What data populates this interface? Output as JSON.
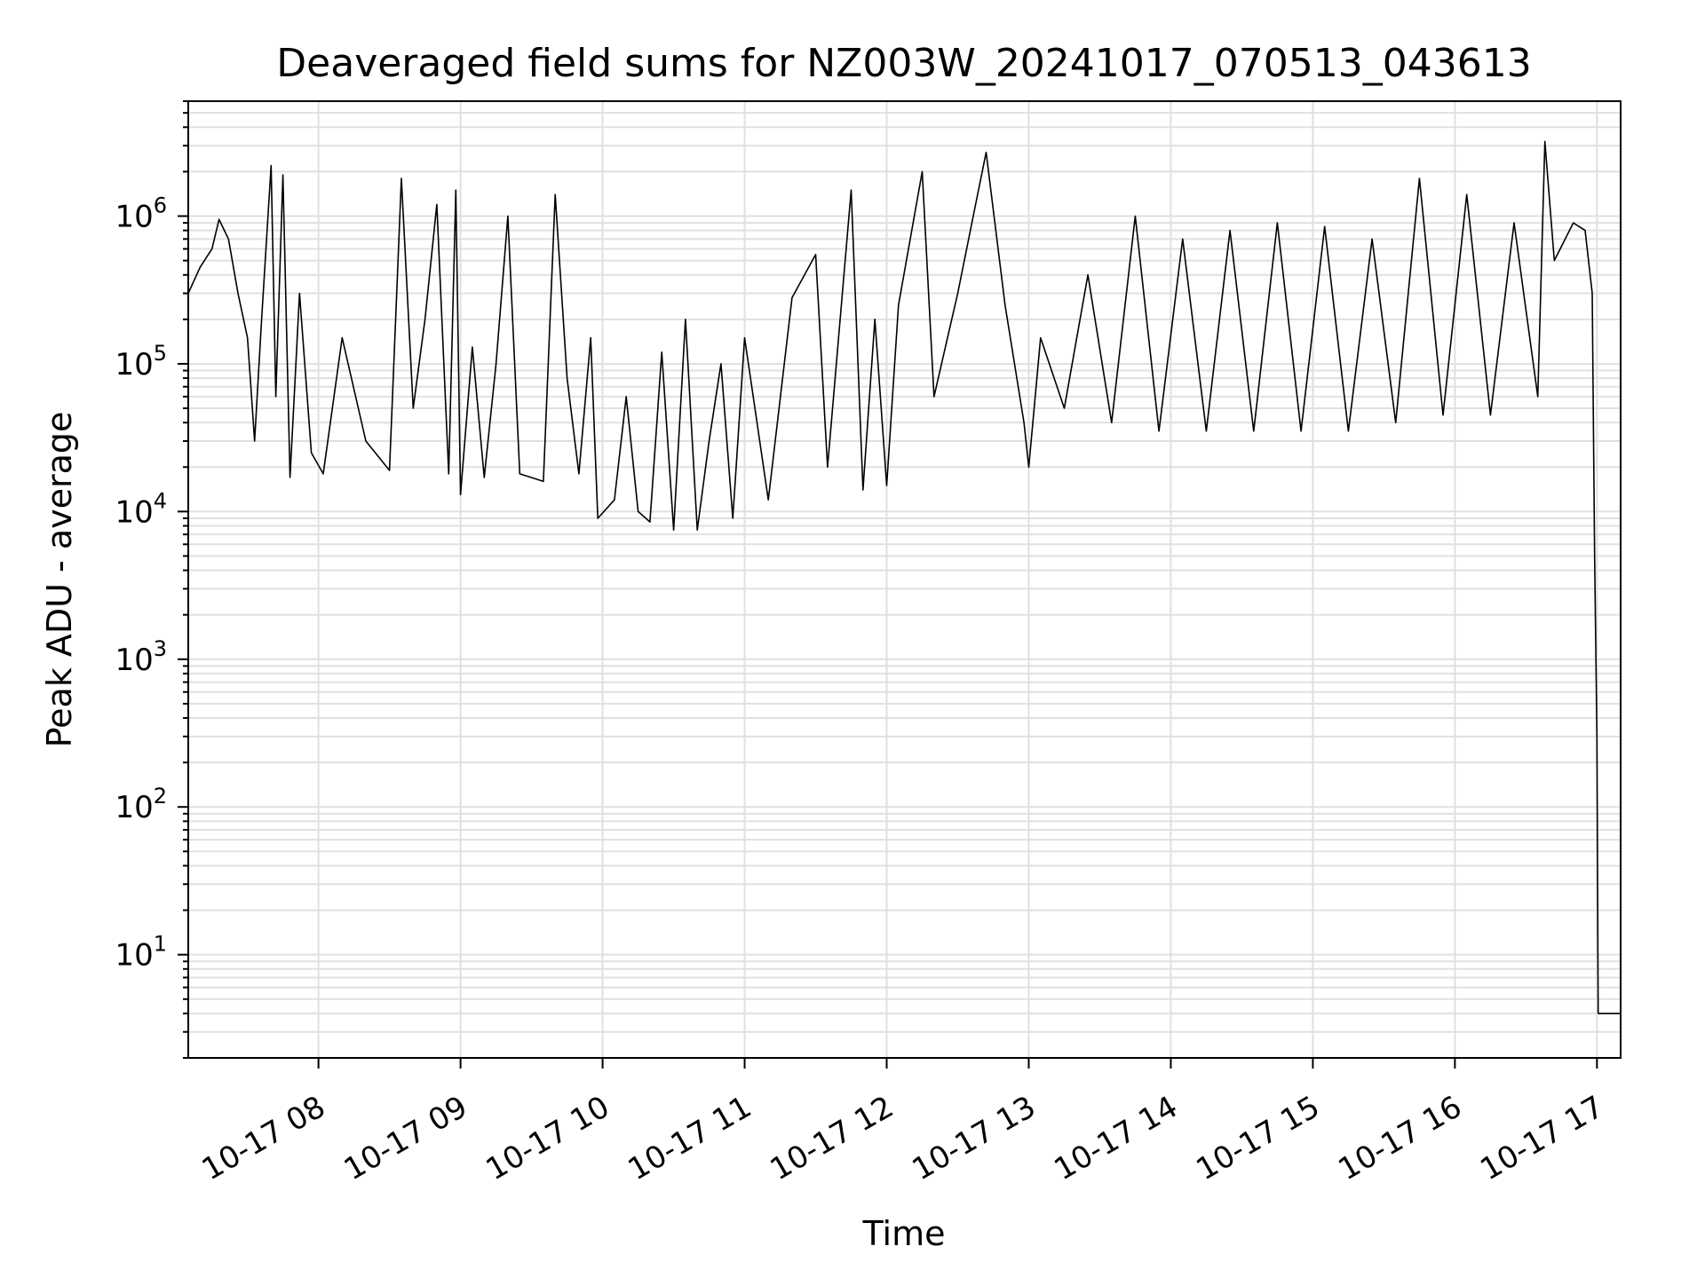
{
  "chart_data": {
    "type": "line",
    "title": "Deaveraged field sums for NZ003W_20241017_070513_043613",
    "xlabel": "Time",
    "ylabel": "Peak ADU - average",
    "xscale": "time",
    "yscale": "log",
    "xlim": [
      "2024-10-17 07:05",
      "2024-10-17 17:10"
    ],
    "ylim": [
      2,
      6000000
    ],
    "grid": true,
    "x_tick_labels": [
      "10-17 08",
      "10-17 09",
      "10-17 10",
      "10-17 11",
      "10-17 12",
      "10-17 13",
      "10-17 14",
      "10-17 15",
      "10-17 16",
      "10-17 17"
    ],
    "y_tick_labels": [
      {
        "base": "10",
        "exp": "1"
      },
      {
        "base": "10",
        "exp": "2"
      },
      {
        "base": "10",
        "exp": "3"
      },
      {
        "base": "10",
        "exp": "4"
      },
      {
        "base": "10",
        "exp": "5"
      },
      {
        "base": "10",
        "exp": "6"
      }
    ],
    "series": [
      {
        "color": "#000000",
        "points": [
          [
            "2024-10-17 07:05",
            300000
          ],
          [
            "2024-10-17 07:10",
            450000
          ],
          [
            "2024-10-17 07:15",
            600000
          ],
          [
            "2024-10-17 07:18",
            950000
          ],
          [
            "2024-10-17 07:22",
            700000
          ],
          [
            "2024-10-17 07:26",
            300000
          ],
          [
            "2024-10-17 07:30",
            150000
          ],
          [
            "2024-10-17 07:33",
            30000
          ],
          [
            "2024-10-17 07:36",
            200000
          ],
          [
            "2024-10-17 07:40",
            2200000
          ],
          [
            "2024-10-17 07:42",
            60000
          ],
          [
            "2024-10-17 07:45",
            1900000
          ],
          [
            "2024-10-17 07:48",
            17000
          ],
          [
            "2024-10-17 07:52",
            300000
          ],
          [
            "2024-10-17 07:57",
            25000
          ],
          [
            "2024-10-17 08:02",
            18000
          ],
          [
            "2024-10-17 08:10",
            150000
          ],
          [
            "2024-10-17 08:20",
            30000
          ],
          [
            "2024-10-17 08:30",
            19000
          ],
          [
            "2024-10-17 08:35",
            1800000
          ],
          [
            "2024-10-17 08:40",
            50000
          ],
          [
            "2024-10-17 08:45",
            200000
          ],
          [
            "2024-10-17 08:50",
            1200000
          ],
          [
            "2024-10-17 08:55",
            18000
          ],
          [
            "2024-10-17 08:58",
            1500000
          ],
          [
            "2024-10-17 09:00",
            13000
          ],
          [
            "2024-10-17 09:05",
            130000
          ],
          [
            "2024-10-17 09:10",
            17000
          ],
          [
            "2024-10-17 09:15",
            100000
          ],
          [
            "2024-10-17 09:20",
            1000000
          ],
          [
            "2024-10-17 09:25",
            18000
          ],
          [
            "2024-10-17 09:35",
            16000
          ],
          [
            "2024-10-17 09:40",
            1400000
          ],
          [
            "2024-10-17 09:45",
            80000
          ],
          [
            "2024-10-17 09:50",
            18000
          ],
          [
            "2024-10-17 09:55",
            150000
          ],
          [
            "2024-10-17 09:58",
            9000
          ],
          [
            "2024-10-17 10:05",
            12000
          ],
          [
            "2024-10-17 10:10",
            60000
          ],
          [
            "2024-10-17 10:15",
            10000
          ],
          [
            "2024-10-17 10:20",
            8500
          ],
          [
            "2024-10-17 10:25",
            120000
          ],
          [
            "2024-10-17 10:30",
            7500
          ],
          [
            "2024-10-17 10:35",
            200000
          ],
          [
            "2024-10-17 10:40",
            7500
          ],
          [
            "2024-10-17 10:45",
            30000
          ],
          [
            "2024-10-17 10:50",
            100000
          ],
          [
            "2024-10-17 10:55",
            9000
          ],
          [
            "2024-10-17 11:00",
            150000
          ],
          [
            "2024-10-17 11:10",
            12000
          ],
          [
            "2024-10-17 11:20",
            280000
          ],
          [
            "2024-10-17 11:30",
            550000
          ],
          [
            "2024-10-17 11:35",
            20000
          ],
          [
            "2024-10-17 11:45",
            1500000
          ],
          [
            "2024-10-17 11:50",
            14000
          ],
          [
            "2024-10-17 11:55",
            200000
          ],
          [
            "2024-10-17 12:00",
            15000
          ],
          [
            "2024-10-17 12:05",
            250000
          ],
          [
            "2024-10-17 12:15",
            2000000
          ],
          [
            "2024-10-17 12:20",
            60000
          ],
          [
            "2024-10-17 12:30",
            300000
          ],
          [
            "2024-10-17 12:38",
            1300000
          ],
          [
            "2024-10-17 12:42",
            2700000
          ],
          [
            "2024-10-17 12:50",
            250000
          ],
          [
            "2024-10-17 12:58",
            40000
          ],
          [
            "2024-10-17 13:00",
            20000
          ],
          [
            "2024-10-17 13:05",
            150000
          ],
          [
            "2024-10-17 13:15",
            50000
          ],
          [
            "2024-10-17 13:25",
            400000
          ],
          [
            "2024-10-17 13:35",
            40000
          ],
          [
            "2024-10-17 13:45",
            1000000
          ],
          [
            "2024-10-17 13:55",
            35000
          ],
          [
            "2024-10-17 14:05",
            700000
          ],
          [
            "2024-10-17 14:15",
            35000
          ],
          [
            "2024-10-17 14:25",
            800000
          ],
          [
            "2024-10-17 14:35",
            35000
          ],
          [
            "2024-10-17 14:45",
            900000
          ],
          [
            "2024-10-17 14:55",
            35000
          ],
          [
            "2024-10-17 15:05",
            850000
          ],
          [
            "2024-10-17 15:15",
            35000
          ],
          [
            "2024-10-17 15:25",
            700000
          ],
          [
            "2024-10-17 15:35",
            40000
          ],
          [
            "2024-10-17 15:45",
            1800000
          ],
          [
            "2024-10-17 15:55",
            45000
          ],
          [
            "2024-10-17 16:05",
            1400000
          ],
          [
            "2024-10-17 16:15",
            45000
          ],
          [
            "2024-10-17 16:25",
            900000
          ],
          [
            "2024-10-17 16:35",
            60000
          ],
          [
            "2024-10-17 16:38",
            3200000
          ],
          [
            "2024-10-17 16:42",
            500000
          ],
          [
            "2024-10-17 16:50",
            900000
          ],
          [
            "2024-10-17 16:55",
            800000
          ],
          [
            "2024-10-17 16:58",
            300000
          ],
          [
            "2024-10-17 16:59",
            5000
          ],
          [
            "2024-10-17 17:00",
            300
          ],
          [
            "2024-10-17 17:00:30",
            4
          ],
          [
            "2024-10-17 17:10",
            4
          ]
        ]
      }
    ]
  }
}
